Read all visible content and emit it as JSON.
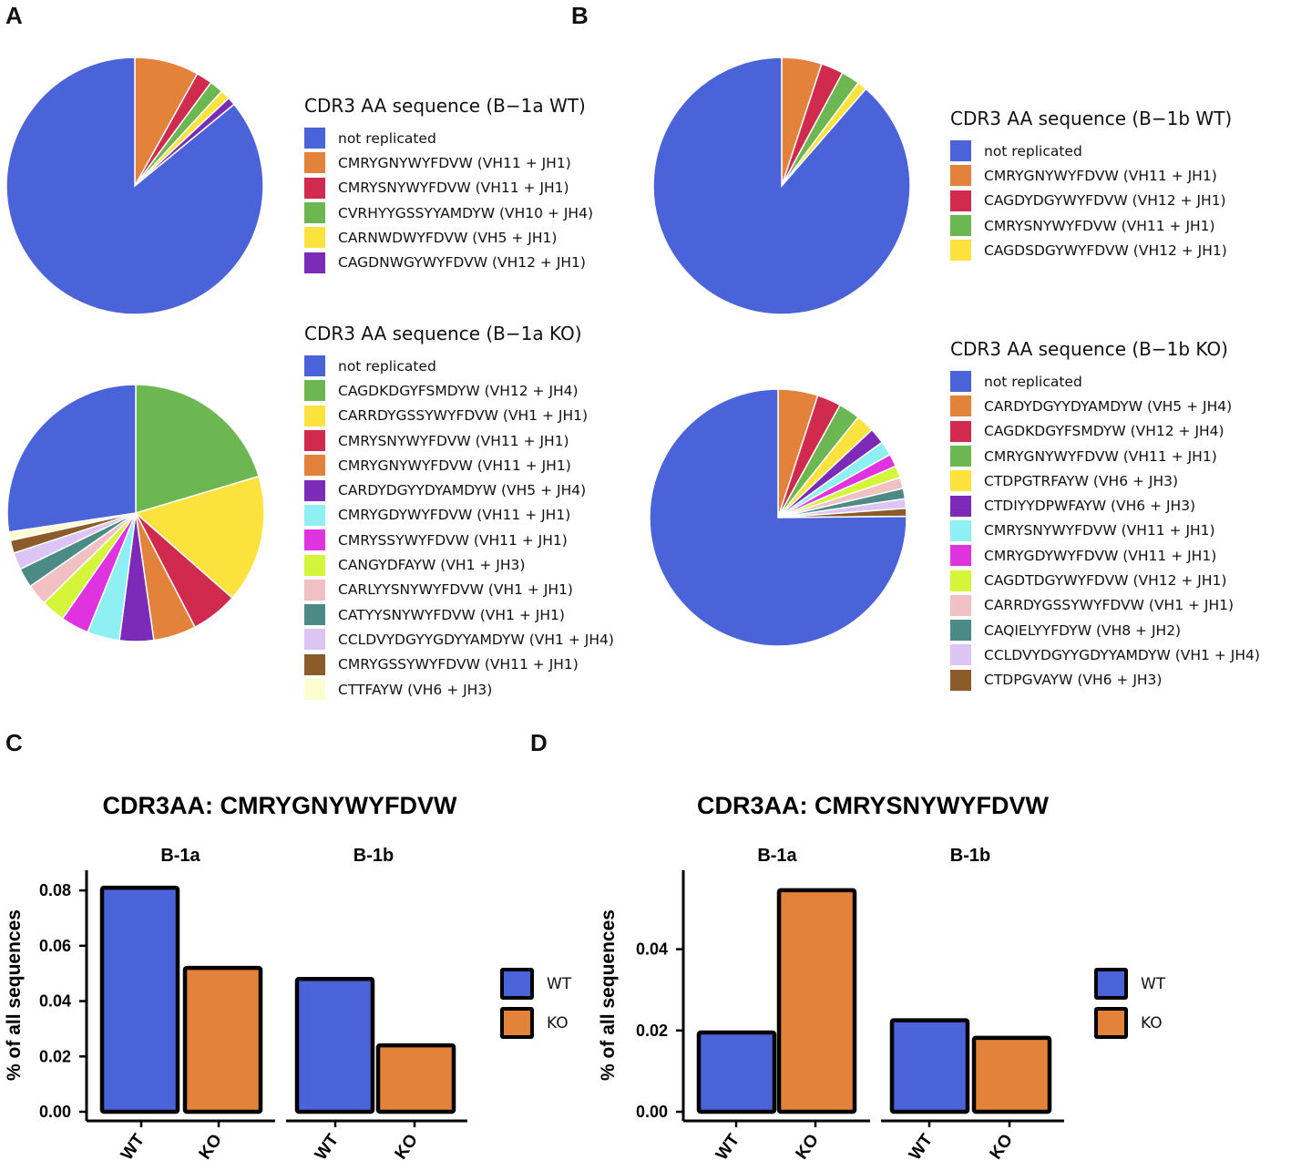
{
  "panels": {
    "a": "A",
    "b": "B",
    "c": "C",
    "d": "D"
  },
  "chart_data": [
    {
      "type": "pie",
      "id": "a-wt",
      "title": "CDR3 AA sequence (B−1a WT)",
      "labels": [
        "not replicated",
        "CMRYGNYWYFDVW (VH11 + JH1)",
        "CMRYSNYWYFDVW (VH11 + JH1)",
        "CVRHYYGSSYYAMDYW (VH10 + JH4)",
        "CARNWDWYFDVW (VH5 + JH1)",
        "CAGDNWGYWYFDVW (VH12 + JH1)"
      ],
      "colors": [
        "#4a63d9",
        "#e3823a",
        "#d02a4e",
        "#6cb752",
        "#fbe23d",
        "#7b2bb8"
      ],
      "values": [
        85.0,
        8.0,
        2.0,
        1.7,
        1.2,
        1.0
      ]
    },
    {
      "type": "pie",
      "id": "a-ko",
      "title": "CDR3 AA sequence (B−1a KO)",
      "labels": [
        "not replicated",
        "CAGDKDGYFSMDYW (VH12 + JH4)",
        "CARRDYGSSYWYFDVW (VH1 + JH1)",
        "CMRYSNYWYFDVW (VH11 + JH1)",
        "CMRYGNYWYFDVW (VH11 + JH1)",
        "CARDYDGYYDYAMDYW (VH5 + JH4)",
        "CMRYGDYWYFDVW (VH11 + JH1)",
        "CMRYSSYWYFDVW (VH11 + JH1)",
        "CANGYDFAYW (VH1 + JH3)",
        "CARLYYSNYWYFDVW (VH1 + JH1)",
        "CATYYSNYWYFDVW (VH1 + JH1)",
        "CCLDVYDGYYGDYYAMDYW (VH1 + JH4)",
        "CMRYGSSYWYFDVW (VH11 + JH1)",
        "CTTFAYW (VH6 + JH3)"
      ],
      "colors": [
        "#4a63d9",
        "#6cb752",
        "#fbe23d",
        "#d02a4e",
        "#e3823a",
        "#7b2bb8",
        "#8ef0f2",
        "#e033e0",
        "#d4f53a",
        "#f1c0c2",
        "#4b8a85",
        "#dcc4f5",
        "#8b5c2a",
        "#fdfdd2"
      ],
      "values": [
        25.5,
        19.0,
        15.0,
        5.5,
        5.0,
        4.0,
        3.8,
        3.3,
        2.8,
        2.5,
        2.3,
        2.0,
        1.5,
        1.0
      ]
    },
    {
      "type": "pie",
      "id": "b-wt",
      "title": "CDR3 AA sequence (B−1b WT)",
      "labels": [
        "not replicated",
        "CMRYGNYWYFDVW (VH11 + JH1)",
        "CAGDYDGYWYFDVW (VH12 + JH1)",
        "CMRYSNYWYFDVW (VH11 + JH1)",
        "CAGDSDGYWYFDVW (VH12 + JH1)"
      ],
      "colors": [
        "#4a63d9",
        "#e3823a",
        "#d02a4e",
        "#6cb752",
        "#fbe23d"
      ],
      "values": [
        88.0,
        5.0,
        2.8,
        2.3,
        1.2
      ]
    },
    {
      "type": "pie",
      "id": "b-ko",
      "title": "CDR3 AA sequence (B−1b KO)",
      "labels": [
        "not replicated",
        "CARDYDGYYDYAMDYW (VH5 + JH4)",
        "CAGDKDGYFSMDYW (VH12 + JH4)",
        "CMRYGNYWYFDVW (VH11 + JH1)",
        "CTDPGTRFAYW (VH6 + JH3)",
        "CTDIYYDPWFAYW (VH6 + JH3)",
        "CMRYSNYWYFDVW (VH11 + JH1)",
        "CMRYGDYWYFDVW (VH11 + JH1)",
        "CAGDTDGYWYFDVW (VH12 + JH1)",
        "CARRDYGSSYWYFDVW (VH1 + JH1)",
        "CAQIELYYFDYW (VH8 + JH2)",
        "CCLDVYDGYYGDYYAMDYW (VH1 + JH4)",
        "CTDPGVAYW (VH6 + JH3)"
      ],
      "colors": [
        "#4a63d9",
        "#e3823a",
        "#d02a4e",
        "#6cb752",
        "#fbe23d",
        "#7b2bb8",
        "#8ef0f2",
        "#e033e0",
        "#d4f53a",
        "#f1c0c2",
        "#4b8a85",
        "#dcc4f5",
        "#8b5c2a"
      ],
      "values": [
        75.0,
        5.0,
        3.0,
        2.7,
        2.3,
        2.0,
        1.8,
        1.6,
        1.5,
        1.4,
        1.3,
        1.2,
        1.0
      ]
    },
    {
      "type": "bar",
      "id": "c",
      "title": "CDR3AA: CMRYGNYWYFDVW",
      "facets": [
        "B-1a",
        "B-1b"
      ],
      "categories": [
        "WT",
        "KO"
      ],
      "series": [
        {
          "name": "B-1a",
          "values": [
            0.081,
            0.052
          ]
        },
        {
          "name": "B-1b",
          "values": [
            0.048,
            0.024
          ]
        }
      ],
      "ylabel": "% of all sequences",
      "ylim": [
        0,
        0.083
      ],
      "yticks": [
        "0.00",
        "0.02",
        "0.04",
        "0.06",
        "0.08"
      ],
      "ytick_values": [
        0,
        0.02,
        0.04,
        0.06,
        0.08
      ],
      "legend": [
        "WT",
        "KO"
      ]
    },
    {
      "type": "bar",
      "id": "d",
      "title": "CDR3AA: CMRYSNYWYFDVW",
      "facets": [
        "B-1a",
        "B-1b"
      ],
      "categories": [
        "WT",
        "KO"
      ],
      "series": [
        {
          "name": "B-1a",
          "values": [
            0.0195,
            0.0545
          ]
        },
        {
          "name": "B-1b",
          "values": [
            0.0225,
            0.0182
          ]
        }
      ],
      "ylabel": "% of all sequences",
      "ylim": [
        0,
        0.0565
      ],
      "yticks": [
        "0.00",
        "0.02",
        "0.04"
      ],
      "ytick_values": [
        0,
        0.02,
        0.04
      ],
      "legend": [
        "WT",
        "KO"
      ]
    }
  ]
}
